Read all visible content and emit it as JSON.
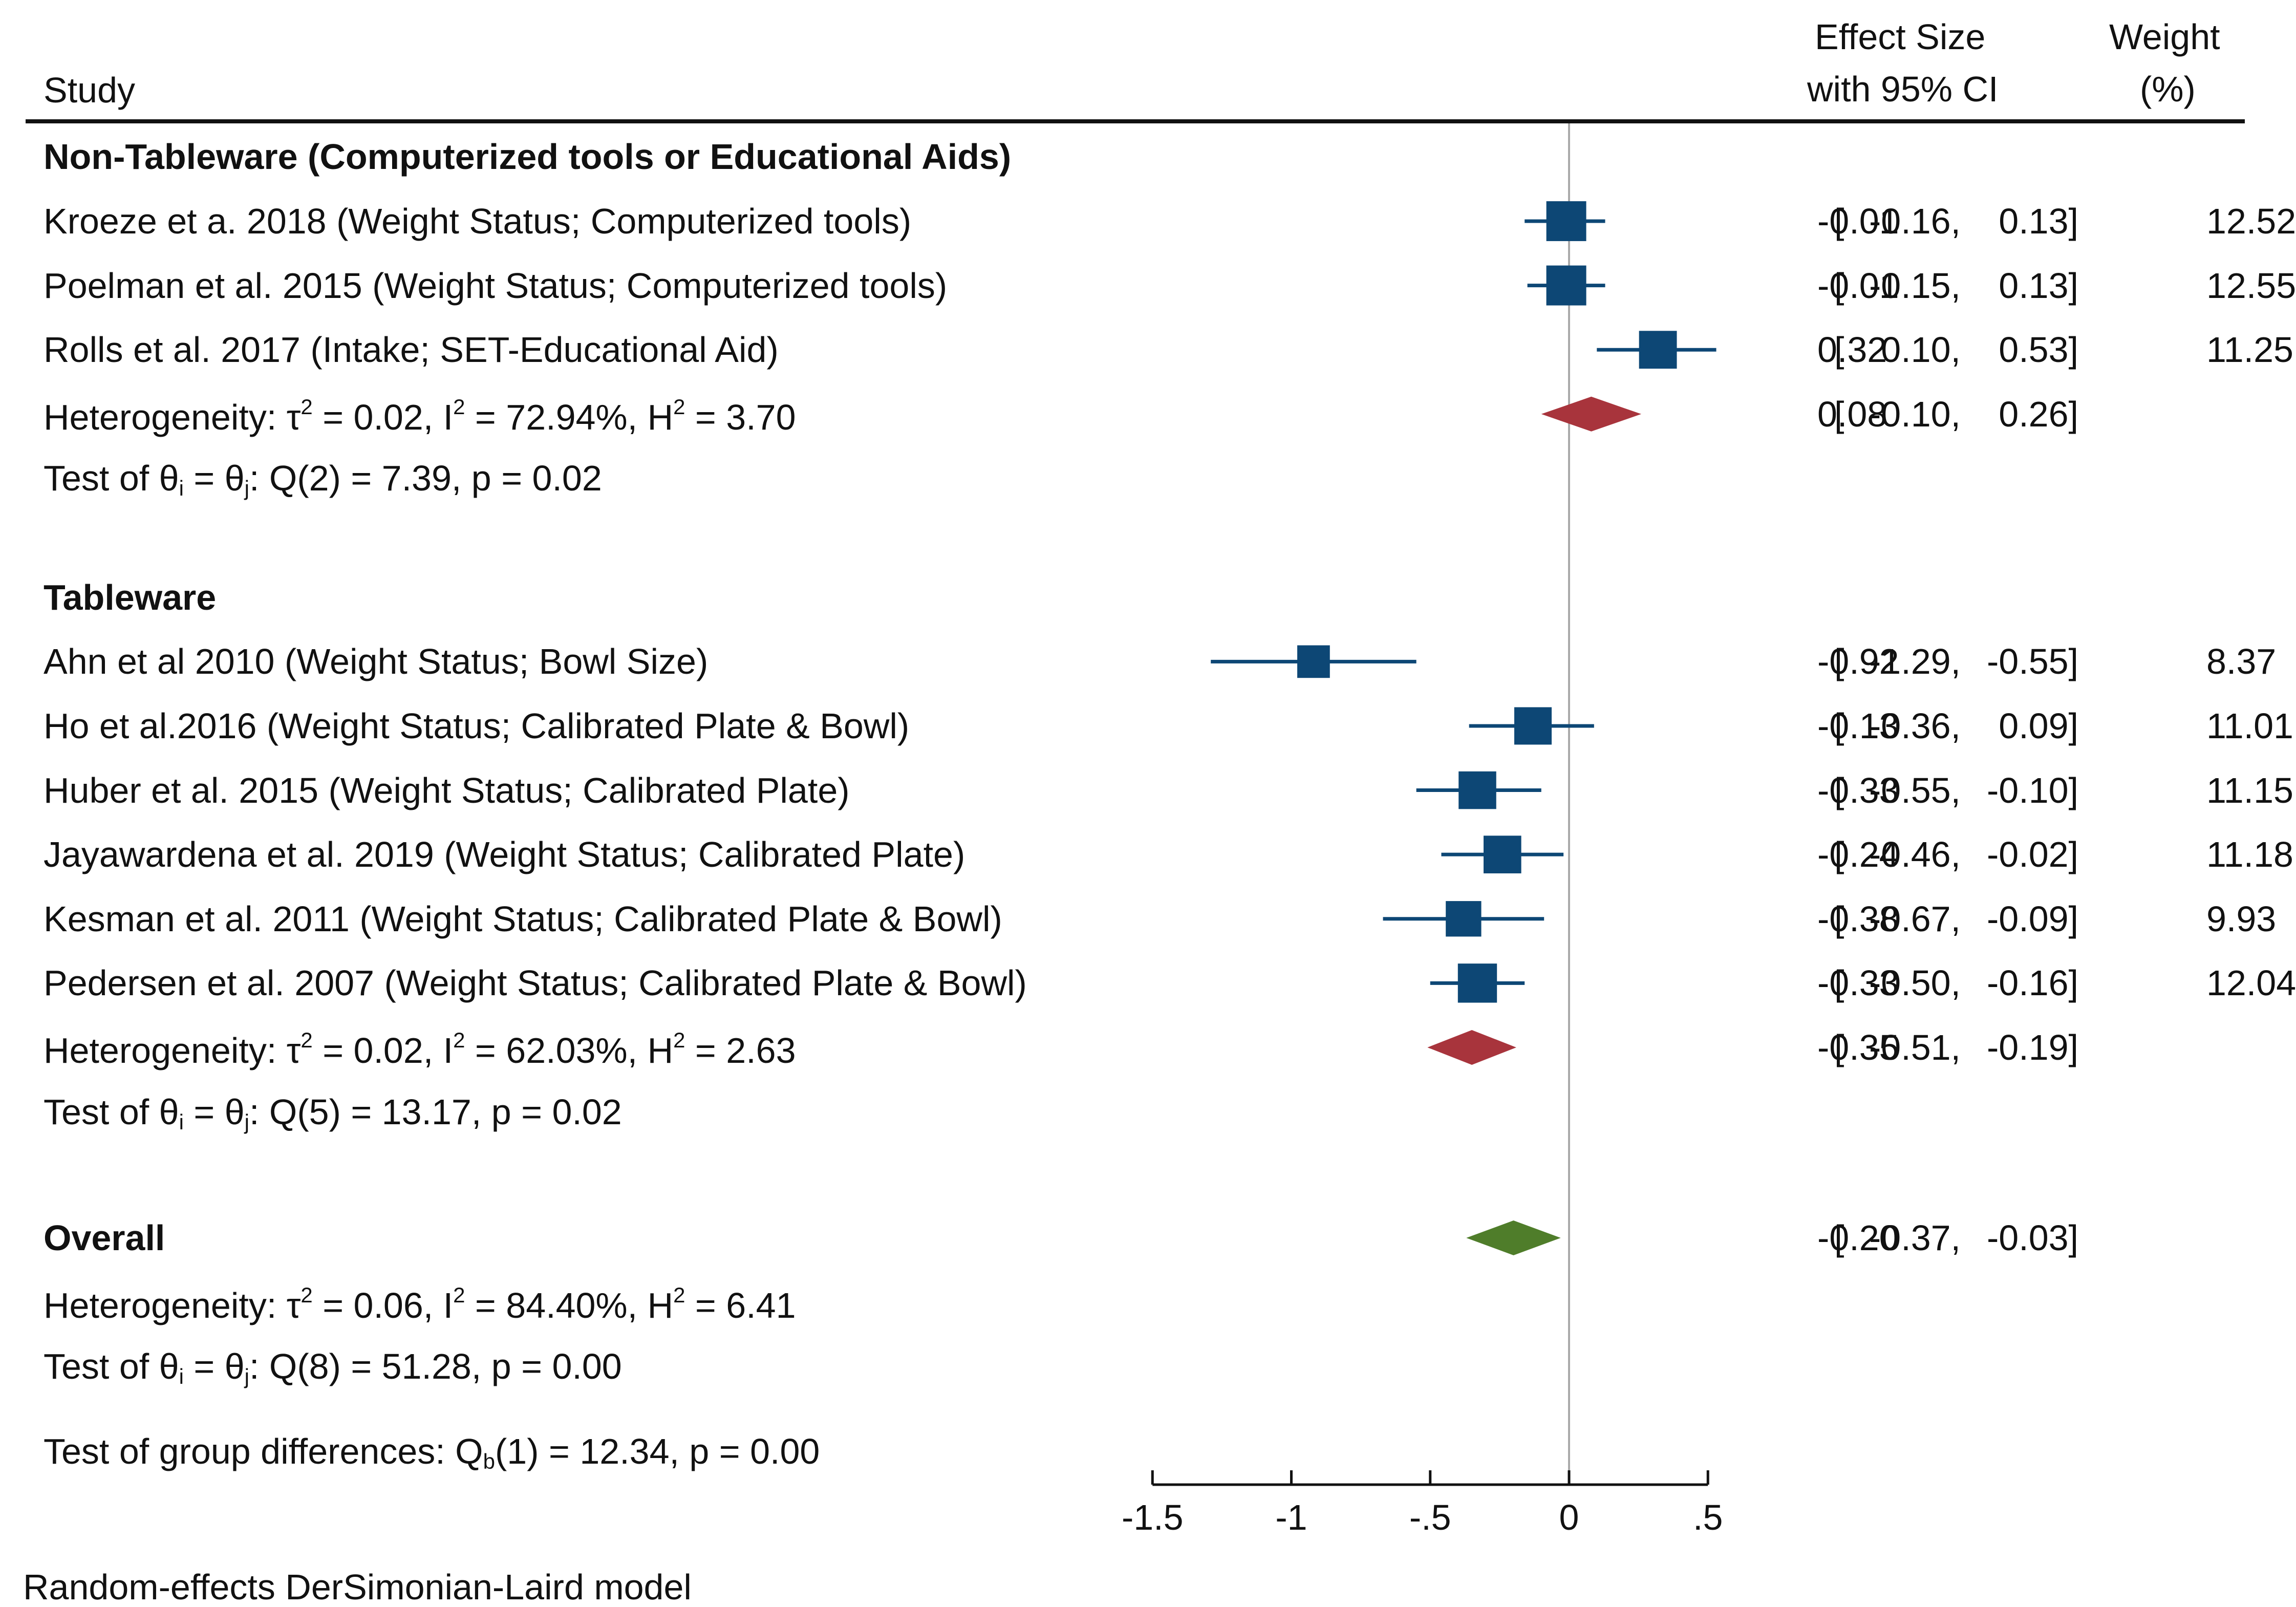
{
  "chart_data": {
    "type": "forest",
    "xlim": [
      -1.5,
      0.5
    ],
    "xticks": [
      -1.5,
      -1,
      -0.5,
      0,
      0.5
    ],
    "xtick_labels": [
      "-1.5",
      "-1",
      "-.5",
      "0",
      ".5"
    ],
    "reference_line": 0,
    "headers": {
      "study": "Study",
      "effect_line1": "Effect Size",
      "effect_line2": "with 95% CI",
      "weight_line1": "Weight",
      "weight_line2": "(%)"
    },
    "groups": [
      {
        "name": "Non-Tableware (Computerized tools or Educational Aids)",
        "studies": [
          {
            "label": "Kroeze et a. 2018 (Weight Status; Computerized tools)",
            "es": -0.01,
            "lo": -0.16,
            "hi": 0.13,
            "weight": 12.52,
            "es_text": "-0.01",
            "lo_text": "-0.16,",
            "hi_text": "0.13]",
            "weight_text": "12.52"
          },
          {
            "label": "Poelman et al. 2015 (Weight Status; Computerized tools)",
            "es": -0.01,
            "lo": -0.15,
            "hi": 0.13,
            "weight": 12.55,
            "es_text": "-0.01",
            "lo_text": "-0.15,",
            "hi_text": "0.13]",
            "weight_text": "12.55"
          },
          {
            "label": "Rolls et al. 2017 (Intake; SET-Educational Aid)",
            "es": 0.32,
            "lo": 0.1,
            "hi": 0.53,
            "weight": 11.25,
            "es_text": "0.32",
            "lo_text": "0.10,",
            "hi_text": "0.53]",
            "weight_text": "11.25"
          }
        ],
        "summary": {
          "es": 0.08,
          "lo": -0.1,
          "hi": 0.26,
          "es_text": "0.08",
          "lo_text": "-0.10,",
          "hi_text": "0.26]"
        },
        "heterogeneity": {
          "tau2": "0.02",
          "I2": "72.94%",
          "H2": "3.70"
        },
        "test": {
          "df": "2",
          "Q": "7.39",
          "p": "0.02"
        }
      },
      {
        "name": "Tableware",
        "studies": [
          {
            "label": "Ahn et al 2010 (Weight Status; Bowl Size)",
            "es": -0.92,
            "lo": -1.29,
            "hi": -0.55,
            "weight": 8.37,
            "es_text": "-0.92",
            "lo_text": "-1.29,",
            "hi_text": "-0.55]",
            "weight_text": "8.37"
          },
          {
            "label": "Ho et al.2016 (Weight Status; Calibrated Plate & Bowl)",
            "es": -0.13,
            "lo": -0.36,
            "hi": 0.09,
            "weight": 11.01,
            "es_text": "-0.13",
            "lo_text": "-0.36,",
            "hi_text": "0.09]",
            "weight_text": "11.01"
          },
          {
            "label": "Huber et al. 2015 (Weight Status; Calibrated Plate)",
            "es": -0.33,
            "lo": -0.55,
            "hi": -0.1,
            "weight": 11.15,
            "es_text": "-0.33",
            "lo_text": "-0.55,",
            "hi_text": "-0.10]",
            "weight_text": "11.15"
          },
          {
            "label": "Jayawardena et al. 2019 (Weight Status; Calibrated Plate)",
            "es": -0.24,
            "lo": -0.46,
            "hi": -0.02,
            "weight": 11.18,
            "es_text": "-0.24",
            "lo_text": "-0.46,",
            "hi_text": "-0.02]",
            "weight_text": "11.18"
          },
          {
            "label": "Kesman et al. 2011 (Weight Status; Calibrated Plate & Bowl)",
            "es": -0.38,
            "lo": -0.67,
            "hi": -0.09,
            "weight": 9.93,
            "es_text": "-0.38",
            "lo_text": "-0.67,",
            "hi_text": "-0.09]",
            "weight_text": "9.93"
          },
          {
            "label": "Pedersen et al. 2007  (Weight Status; Calibrated Plate & Bowl)",
            "es": -0.33,
            "lo": -0.5,
            "hi": -0.16,
            "weight": 12.04,
            "es_text": "-0.33",
            "lo_text": "-0.50,",
            "hi_text": "-0.16]",
            "weight_text": "12.04"
          }
        ],
        "summary": {
          "es": -0.35,
          "lo": -0.51,
          "hi": -0.19,
          "es_text": "-0.35",
          "lo_text": "-0.51,",
          "hi_text": "-0.19]"
        },
        "heterogeneity": {
          "tau2": "0.02",
          "I2": "62.03%",
          "H2": "2.63"
        },
        "test": {
          "df": "5",
          "Q": "13.17",
          "p": "0.02"
        }
      }
    ],
    "overall": {
      "label": "Overall",
      "es": -0.2,
      "lo": -0.37,
      "hi": -0.03,
      "es_text": "-0.20",
      "lo_text": "-0.37,",
      "hi_text": "-0.03]",
      "heterogeneity": {
        "tau2": "0.06",
        "I2": "84.40%",
        "H2": "6.41"
      },
      "test": {
        "df": "8",
        "Q": "51.28",
        "p": "0.00"
      }
    },
    "group_test": {
      "df": "1",
      "Q": "12.34",
      "p": "0.00"
    },
    "footnote": "Random-effects DerSimonian-Laird model",
    "colors": {
      "marker": "#0d4775",
      "ci_line": "#0d4775",
      "group_diamond": "#a8343c",
      "overall_diamond": "#4f7d2a",
      "ref_line": "#aaaaaa",
      "axis": "#111111"
    }
  },
  "labels": {
    "heterogeneity_prefix": "Heterogeneity: ",
    "test_prefix": "Test of ",
    "group_test_prefix": "Test of group differences: "
  }
}
